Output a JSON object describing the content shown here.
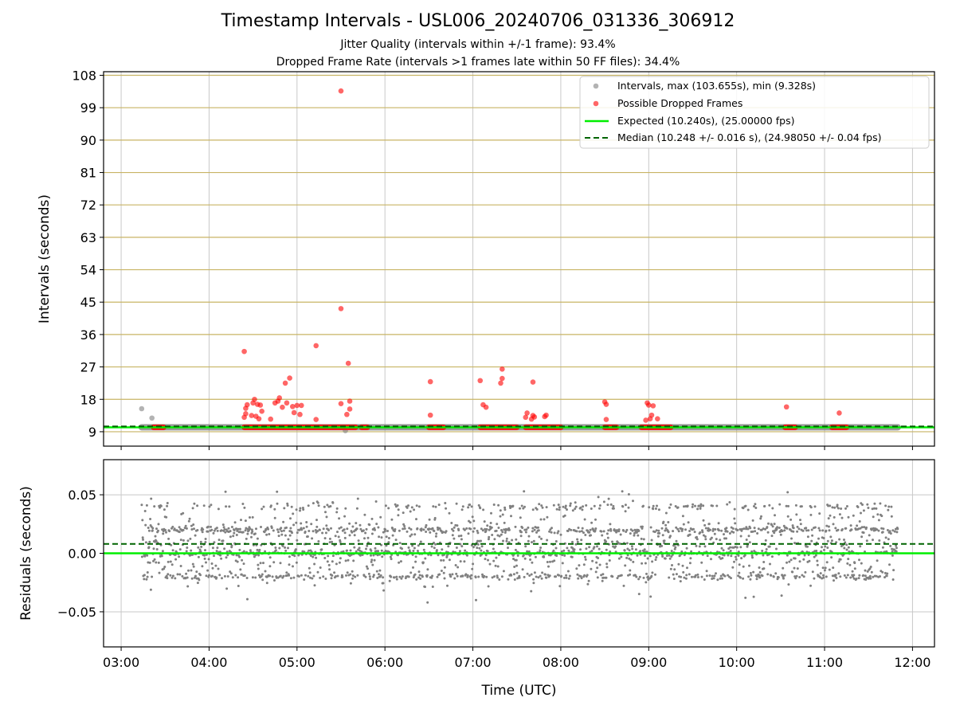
{
  "figure": {
    "title": "Timestamp Intervals - USL006_20240706_031336_306912",
    "subtitle_1": "Jitter Quality (intervals within +/-1 frame): 93.4%",
    "subtitle_2": "Dropped Frame Rate (intervals >1 frames late within 50 FF files): 34.4%"
  },
  "colors": {
    "intervals": "#808080",
    "dropped": "#ff0000",
    "expected": "#00ee00",
    "median": "#006400",
    "hgrid": "#c8b464",
    "vgrid": "#c8c8c8"
  },
  "chart_data": [
    {
      "type": "scatter",
      "name_in_image": "top-panel",
      "xlabel": "",
      "ylabel": "Intervals (seconds)",
      "x_range_hours": [
        2.8,
        12.25
      ],
      "ylim": [
        5,
        109
      ],
      "yticks": [
        9,
        18,
        27,
        36,
        45,
        54,
        63,
        72,
        81,
        90,
        99,
        108
      ],
      "grid": true,
      "legend_position": "top-right",
      "legend": [
        "Intervals, max (103.655s), min (9.328s)",
        "Possible Dropped Frames",
        "Expected (10.240s), (25.00000 fps)",
        "Median (10.248 +/- 0.016 s), (24.98050 +/- 0.04 fps)"
      ],
      "expected_interval": 10.24,
      "median_interval": 10.248,
      "intervals_baseline": {
        "x_start": "03:14",
        "x_end": "11:50",
        "value": 10.24
      },
      "intervals_outliers": [
        {
          "x": "03:14",
          "y": 15.4
        },
        {
          "x": "03:21",
          "y": 12.8
        },
        {
          "x": "05:33",
          "y": 9.3
        }
      ],
      "dropped_baseline_segments": [
        [
          "03:22",
          "03:29"
        ],
        [
          "04:24",
          "05:40"
        ],
        [
          "05:44",
          "05:48"
        ],
        [
          "06:30",
          "06:40"
        ],
        [
          "07:05",
          "07:30"
        ],
        [
          "07:36",
          "08:00"
        ],
        [
          "08:30",
          "08:38"
        ],
        [
          "08:55",
          "09:15"
        ],
        [
          "10:33",
          "10:40"
        ],
        [
          "11:05",
          "11:15"
        ]
      ],
      "dropped_points": [
        {
          "x": "04:24",
          "y": 31.3
        },
        {
          "x": "04:24",
          "y": 13.0
        },
        {
          "x": "04:25",
          "y": 14.0
        },
        {
          "x": "04:25",
          "y": 15.5
        },
        {
          "x": "04:26",
          "y": 16.5
        },
        {
          "x": "04:29",
          "y": 13.5
        },
        {
          "x": "04:30",
          "y": 17.0
        },
        {
          "x": "04:31",
          "y": 18.0
        },
        {
          "x": "04:32",
          "y": 13.3
        },
        {
          "x": "04:33",
          "y": 16.6
        },
        {
          "x": "04:34",
          "y": 12.6
        },
        {
          "x": "04:35",
          "y": 16.4
        },
        {
          "x": "04:36",
          "y": 14.7
        },
        {
          "x": "04:42",
          "y": 12.5
        },
        {
          "x": "04:45",
          "y": 17.0
        },
        {
          "x": "04:47",
          "y": 17.5
        },
        {
          "x": "04:48",
          "y": 18.4
        },
        {
          "x": "04:50",
          "y": 15.8
        },
        {
          "x": "04:52",
          "y": 22.5
        },
        {
          "x": "04:53",
          "y": 17.0
        },
        {
          "x": "04:55",
          "y": 23.9
        },
        {
          "x": "04:57",
          "y": 16.0
        },
        {
          "x": "04:58",
          "y": 14.3
        },
        {
          "x": "05:00",
          "y": 16.3
        },
        {
          "x": "05:02",
          "y": 13.8
        },
        {
          "x": "05:03",
          "y": 16.3
        },
        {
          "x": "05:13",
          "y": 32.9
        },
        {
          "x": "05:13",
          "y": 12.4
        },
        {
          "x": "05:30",
          "y": 103.65
        },
        {
          "x": "05:30",
          "y": 43.2
        },
        {
          "x": "05:30",
          "y": 16.8
        },
        {
          "x": "05:34",
          "y": 13.8
        },
        {
          "x": "05:35",
          "y": 28.0
        },
        {
          "x": "05:36",
          "y": 17.5
        },
        {
          "x": "05:36",
          "y": 15.3
        },
        {
          "x": "06:31",
          "y": 22.9
        },
        {
          "x": "06:31",
          "y": 13.6
        },
        {
          "x": "07:05",
          "y": 23.2
        },
        {
          "x": "07:07",
          "y": 16.5
        },
        {
          "x": "07:09",
          "y": 15.8
        },
        {
          "x": "07:19",
          "y": 22.5
        },
        {
          "x": "07:20",
          "y": 23.8
        },
        {
          "x": "07:20",
          "y": 26.4
        },
        {
          "x": "07:36",
          "y": 13.0
        },
        {
          "x": "07:37",
          "y": 14.2
        },
        {
          "x": "07:40",
          "y": 12.5
        },
        {
          "x": "07:41",
          "y": 13.5
        },
        {
          "x": "07:41",
          "y": 22.8
        },
        {
          "x": "07:42",
          "y": 13.1
        },
        {
          "x": "07:49",
          "y": 13.2
        },
        {
          "x": "07:50",
          "y": 13.6
        },
        {
          "x": "08:30",
          "y": 17.3
        },
        {
          "x": "08:31",
          "y": 16.6
        },
        {
          "x": "08:31",
          "y": 12.4
        },
        {
          "x": "08:58",
          "y": 12.2
        },
        {
          "x": "08:59",
          "y": 17.0
        },
        {
          "x": "09:00",
          "y": 16.4
        },
        {
          "x": "09:01",
          "y": 12.6
        },
        {
          "x": "09:02",
          "y": 13.6
        },
        {
          "x": "09:03",
          "y": 16.2
        },
        {
          "x": "09:06",
          "y": 12.6
        },
        {
          "x": "10:34",
          "y": 15.9
        },
        {
          "x": "11:10",
          "y": 14.2
        }
      ]
    },
    {
      "type": "scatter",
      "name_in_image": "bottom-panel",
      "xlabel": "Time (UTC)",
      "ylabel": "Residuals (seconds)",
      "xticks": [
        "03:00",
        "04:00",
        "05:00",
        "06:00",
        "07:00",
        "08:00",
        "09:00",
        "10:00",
        "11:00",
        "12:00"
      ],
      "x_range_hours": [
        2.8,
        12.25
      ],
      "ylim": [
        -0.08,
        0.08
      ],
      "yticks": [
        -0.05,
        0.0,
        0.05
      ],
      "ytick_labels": [
        "−0.05",
        "0.00",
        "0.05"
      ],
      "grid": true,
      "expected_residual": 0.0,
      "median_residual": 0.008,
      "residuals_summary": {
        "x_start": "03:14",
        "x_end": "11:50",
        "approx_points": 2400,
        "levels": [
          -0.02,
          0.0,
          0.02,
          0.04
        ],
        "max": 0.053,
        "min": -0.045
      }
    }
  ]
}
